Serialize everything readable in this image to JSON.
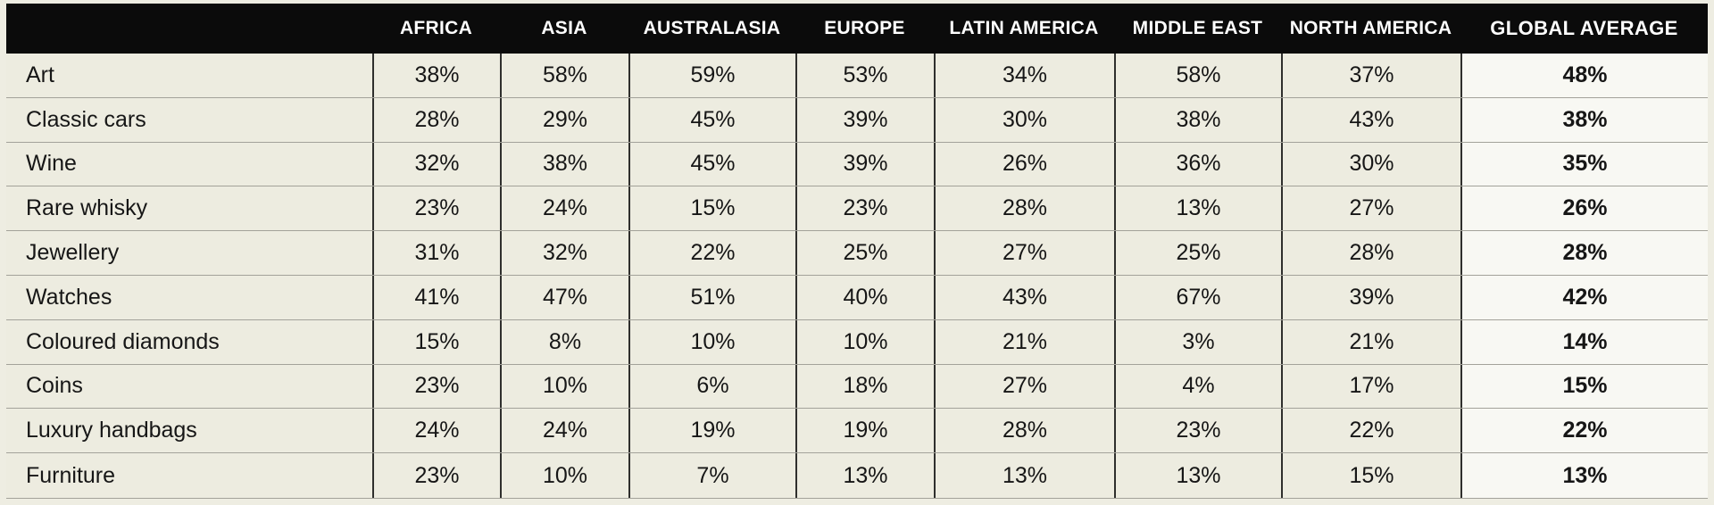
{
  "table": {
    "header": {
      "row_label_column": "",
      "columns": [
        "AFRICA",
        "ASIA",
        "AUSTRALASIA",
        "EUROPE",
        "LATIN AMERICA",
        "MIDDLE EAST",
        "NORTH AMERICA",
        "GLOBAL AVERAGE"
      ]
    },
    "rows": [
      {
        "label": "Art",
        "values": [
          "38%",
          "58%",
          "59%",
          "53%",
          "34%",
          "58%",
          "37%"
        ],
        "global_average": "48%"
      },
      {
        "label": "Classic cars",
        "values": [
          "28%",
          "29%",
          "45%",
          "39%",
          "30%",
          "38%",
          "43%"
        ],
        "global_average": "38%"
      },
      {
        "label": "Wine",
        "values": [
          "32%",
          "38%",
          "45%",
          "39%",
          "26%",
          "36%",
          "30%"
        ],
        "global_average": "35%"
      },
      {
        "label": "Rare whisky",
        "values": [
          "23%",
          "24%",
          "15%",
          "23%",
          "28%",
          "13%",
          "27%"
        ],
        "global_average": "26%"
      },
      {
        "label": "Jewellery",
        "values": [
          "31%",
          "32%",
          "22%",
          "25%",
          "27%",
          "25%",
          "28%"
        ],
        "global_average": "28%"
      },
      {
        "label": "Watches",
        "values": [
          "41%",
          "47%",
          "51%",
          "40%",
          "43%",
          "67%",
          "39%"
        ],
        "global_average": "42%"
      },
      {
        "label": "Coloured diamonds",
        "values": [
          "15%",
          "8%",
          "10%",
          "10%",
          "21%",
          "3%",
          "21%"
        ],
        "global_average": "14%"
      },
      {
        "label": "Coins",
        "values": [
          "23%",
          "10%",
          "6%",
          "18%",
          "27%",
          "4%",
          "17%"
        ],
        "global_average": "15%"
      },
      {
        "label": "Luxury handbags",
        "values": [
          "24%",
          "24%",
          "19%",
          "19%",
          "28%",
          "23%",
          "22%"
        ],
        "global_average": "22%"
      },
      {
        "label": "Furniture",
        "values": [
          "23%",
          "10%",
          "7%",
          "13%",
          "13%",
          "13%",
          "15%"
        ],
        "global_average": "13%"
      }
    ]
  },
  "chart_data": {
    "type": "table",
    "title": "",
    "unit": "%",
    "categories": [
      "Art",
      "Classic cars",
      "Wine",
      "Rare whisky",
      "Jewellery",
      "Watches",
      "Coloured diamonds",
      "Coins",
      "Luxury handbags",
      "Furniture"
    ],
    "columns": [
      "AFRICA",
      "ASIA",
      "AUSTRALASIA",
      "EUROPE",
      "LATIN AMERICA",
      "MIDDLE EAST",
      "NORTH AMERICA",
      "GLOBAL AVERAGE"
    ],
    "series": [
      {
        "name": "AFRICA",
        "values": [
          38,
          28,
          32,
          23,
          31,
          41,
          15,
          23,
          24,
          23
        ]
      },
      {
        "name": "ASIA",
        "values": [
          58,
          29,
          38,
          24,
          32,
          47,
          8,
          10,
          24,
          10
        ]
      },
      {
        "name": "AUSTRALASIA",
        "values": [
          59,
          45,
          45,
          15,
          22,
          51,
          10,
          6,
          19,
          7
        ]
      },
      {
        "name": "EUROPE",
        "values": [
          53,
          39,
          39,
          23,
          25,
          40,
          10,
          18,
          19,
          13
        ]
      },
      {
        "name": "LATIN AMERICA",
        "values": [
          34,
          30,
          26,
          28,
          27,
          43,
          21,
          27,
          28,
          13
        ]
      },
      {
        "name": "MIDDLE EAST",
        "values": [
          58,
          38,
          36,
          13,
          25,
          67,
          3,
          4,
          23,
          13
        ]
      },
      {
        "name": "NORTH AMERICA",
        "values": [
          37,
          43,
          30,
          27,
          28,
          39,
          21,
          17,
          22,
          15
        ]
      },
      {
        "name": "GLOBAL AVERAGE",
        "values": [
          48,
          38,
          35,
          26,
          28,
          42,
          14,
          15,
          22,
          13
        ]
      }
    ]
  },
  "colors": {
    "page_background": "#eeede2",
    "cell_background": "#edece0",
    "global_column_background": "#f8f8f3",
    "header_background": "#0b0b0b",
    "header_text": "#ffffff",
    "body_text": "#161616",
    "column_divider": "#2f2f2d",
    "row_divider": "#a3a29a"
  }
}
